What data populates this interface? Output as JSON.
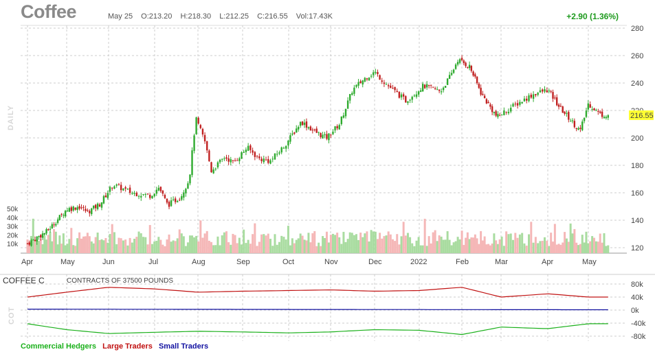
{
  "header": {
    "title": "Coffee",
    "date": "May 25",
    "open": "O:213.20",
    "high": "H:218.30",
    "low": "L:212.25",
    "close": "C:216.55",
    "volume": "Vol:17.43K",
    "change": "+2.90 (1.36%)",
    "period_label": "DAILY",
    "last_price_label": "216.55"
  },
  "cot": {
    "title": "COFFEE C",
    "subtitle": "CONTRACTS OF 37500 POUNDS",
    "side_label": "COT",
    "legend": [
      {
        "name": "Commercial Hedgers",
        "color": "#1ab01a"
      },
      {
        "name": "Large Traders",
        "color": "#c01010"
      },
      {
        "name": "Small Traders",
        "color": "#1010a0"
      }
    ]
  },
  "colors": {
    "up": "#2eaa2e",
    "down": "#c02020",
    "vol_up": "#a9dca0",
    "vol_down": "#f5b7b7",
    "grid": "#cccccc",
    "highlight": "#ffff33"
  },
  "chart_data": [
    {
      "type": "candlestick",
      "title": "Coffee",
      "x_tick_labels": [
        "Apr",
        "May",
        "Jun",
        "Jul",
        "Aug",
        "Sep",
        "Oct",
        "Nov",
        "Dec",
        "2022",
        "Feb",
        "Mar",
        "Apr",
        "May"
      ],
      "y_tick_labels": [
        "280",
        "260",
        "240",
        "220",
        "200",
        "180",
        "160",
        "140",
        "120"
      ],
      "ylim": [
        116,
        282
      ],
      "last_close": 216.55,
      "grid": true,
      "price_anchors": [
        {
          "month": 0.0,
          "price": 123
        },
        {
          "month": 0.5,
          "price": 132
        },
        {
          "month": 1.0,
          "price": 148
        },
        {
          "month": 1.3,
          "price": 150
        },
        {
          "month": 1.5,
          "price": 146
        },
        {
          "month": 1.8,
          "price": 152
        },
        {
          "month": 2.1,
          "price": 166
        },
        {
          "month": 2.5,
          "price": 160
        },
        {
          "month": 2.9,
          "price": 158
        },
        {
          "month": 3.1,
          "price": 164
        },
        {
          "month": 3.3,
          "price": 151
        },
        {
          "month": 3.6,
          "price": 157
        },
        {
          "month": 3.8,
          "price": 170
        },
        {
          "month": 3.95,
          "price": 214
        },
        {
          "month": 4.15,
          "price": 198
        },
        {
          "month": 4.3,
          "price": 176
        },
        {
          "month": 4.6,
          "price": 186
        },
        {
          "month": 4.8,
          "price": 182
        },
        {
          "month": 5.1,
          "price": 193
        },
        {
          "month": 5.35,
          "price": 185
        },
        {
          "month": 5.6,
          "price": 183
        },
        {
          "month": 5.9,
          "price": 194
        },
        {
          "month": 6.3,
          "price": 212
        },
        {
          "month": 6.6,
          "price": 205
        },
        {
          "month": 6.9,
          "price": 200
        },
        {
          "month": 7.2,
          "price": 210
        },
        {
          "month": 7.5,
          "price": 235
        },
        {
          "month": 7.8,
          "price": 244
        },
        {
          "month": 8.0,
          "price": 248
        },
        {
          "month": 8.3,
          "price": 238
        },
        {
          "month": 8.7,
          "price": 227
        },
        {
          "month": 9.1,
          "price": 238
        },
        {
          "month": 9.5,
          "price": 234
        },
        {
          "month": 9.75,
          "price": 246
        },
        {
          "month": 9.9,
          "price": 257
        },
        {
          "month": 10.2,
          "price": 252
        },
        {
          "month": 10.5,
          "price": 232
        },
        {
          "month": 10.9,
          "price": 215
        },
        {
          "month": 11.3,
          "price": 224
        },
        {
          "month": 11.7,
          "price": 232
        },
        {
          "month": 12.0,
          "price": 235
        },
        {
          "month": 12.3,
          "price": 222
        },
        {
          "month": 12.8,
          "price": 205
        },
        {
          "month": 13.0,
          "price": 225
        },
        {
          "month": 13.3,
          "price": 217
        },
        {
          "month": 13.48,
          "price": 216.55
        }
      ]
    },
    {
      "type": "bar",
      "title": "Volume",
      "y_tick_labels": [
        "50k",
        "40k",
        "30k",
        "20k",
        "10k"
      ],
      "ylim": [
        0,
        50000
      ],
      "typical_volume": 17430
    },
    {
      "type": "line",
      "title": "COFFEE C",
      "y_tick_labels": [
        "80k",
        "40k",
        "0k",
        "-40k",
        "-80k"
      ],
      "ylim": [
        -80000,
        80000
      ],
      "series": [
        {
          "name": "Large Traders",
          "x": [
            0,
            1,
            2,
            3,
            4,
            5,
            6,
            7,
            8,
            9,
            10,
            11,
            12,
            13,
            13.48
          ],
          "values": [
            40000,
            55000,
            70000,
            65000,
            55000,
            58000,
            60000,
            62000,
            58000,
            60000,
            70000,
            40000,
            50000,
            40000,
            40000
          ]
        },
        {
          "name": "Small Traders",
          "x": [
            0,
            6,
            13.48
          ],
          "values": [
            3000,
            2000,
            1000
          ]
        },
        {
          "name": "Commercial Hedgers",
          "x": [
            0,
            1,
            2,
            3,
            4,
            5,
            6,
            7,
            8,
            9,
            10,
            11,
            12,
            13,
            13.48
          ],
          "values": [
            -42000,
            -60000,
            -72000,
            -68000,
            -65000,
            -67000,
            -70000,
            -67000,
            -60000,
            -62000,
            -75000,
            -52000,
            -57000,
            -42000,
            -42000
          ]
        }
      ]
    }
  ]
}
